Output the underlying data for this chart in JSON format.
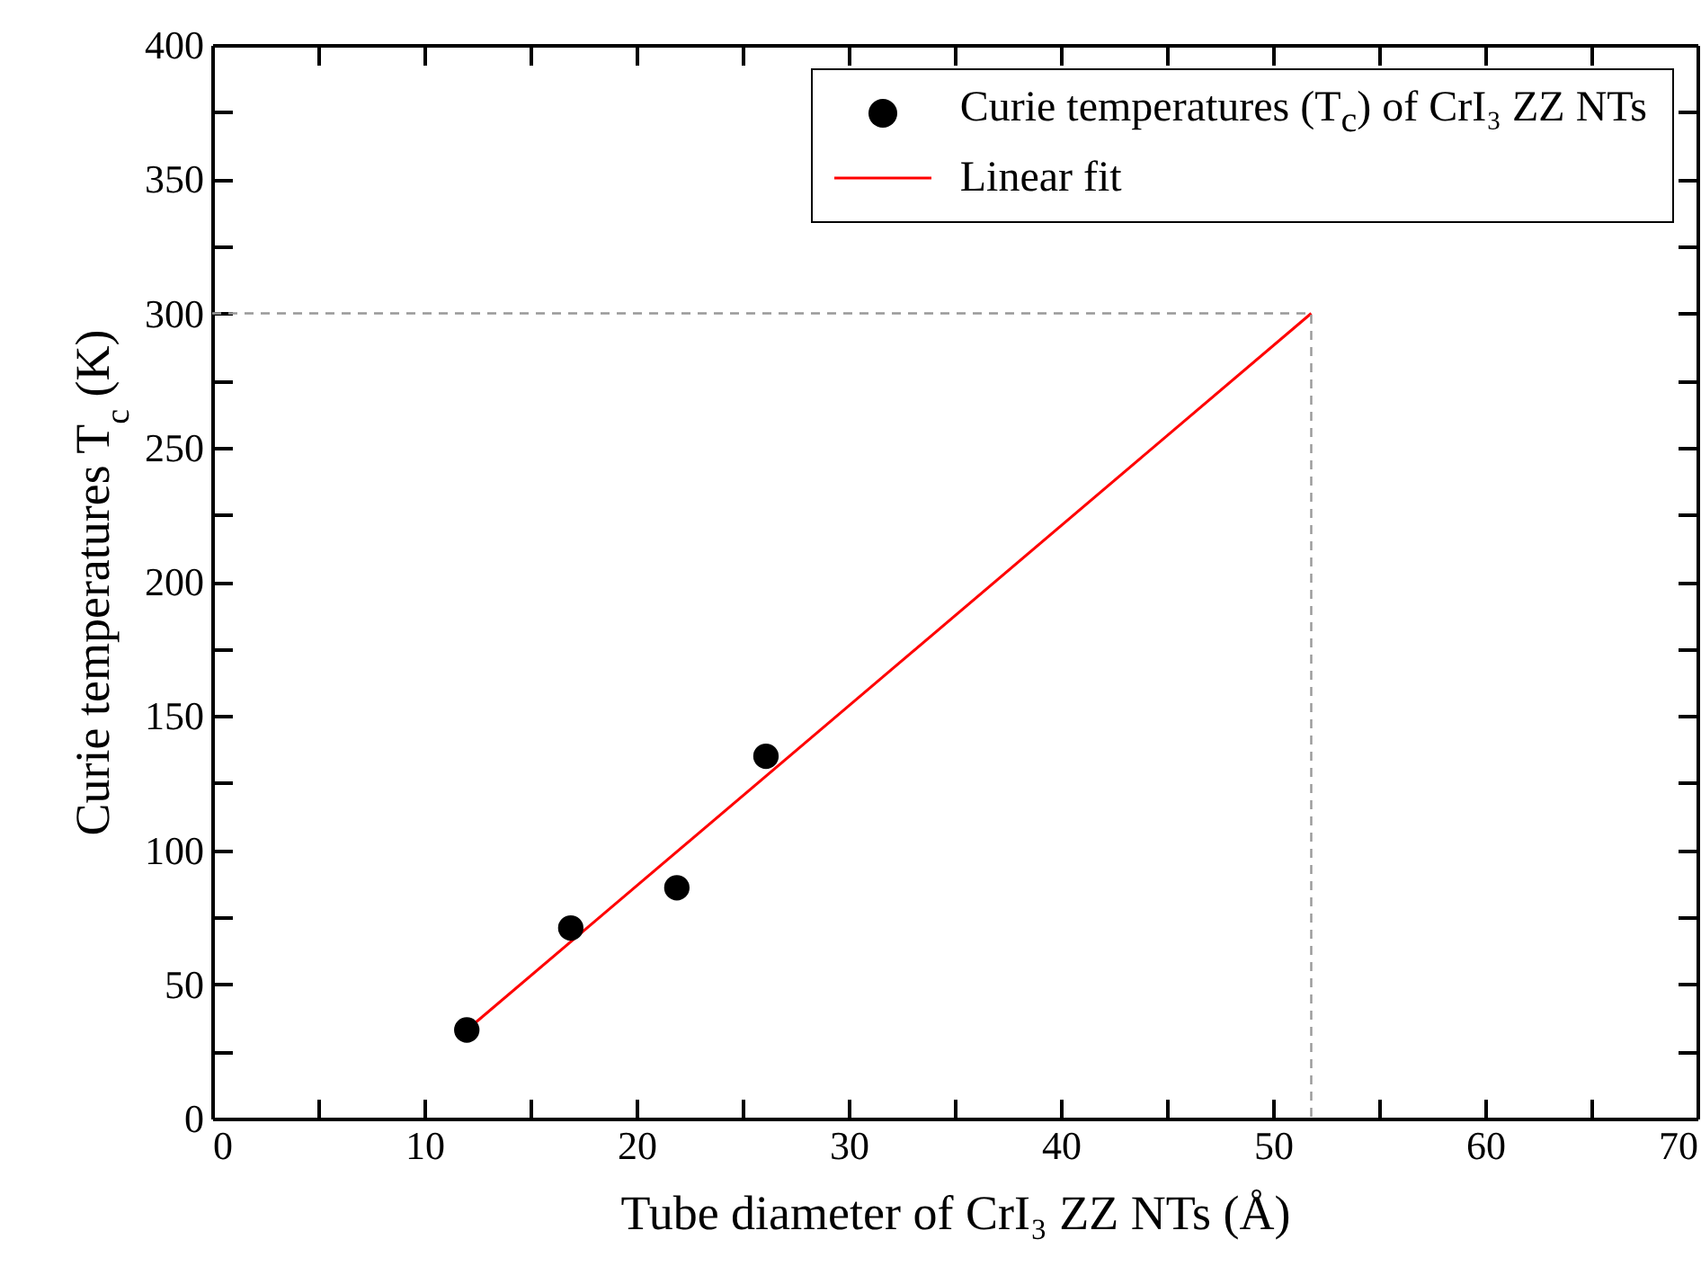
{
  "chart_data": {
    "type": "scatter",
    "xlabel": "Tube diameter of CrI₃ ZZ NTs (Å)",
    "ylabel": "Curie temperatures T$_{c}$ (K)",
    "xlim": [
      0,
      70
    ],
    "ylim": [
      0,
      400
    ],
    "xticks": [
      0,
      {
        "value": 5,
        "label": null
      },
      10,
      {
        "value": 15,
        "label": null
      },
      20,
      {
        "value": 25,
        "label": null
      },
      30,
      {
        "value": 35,
        "label": null
      },
      40,
      {
        "value": 45,
        "label": null
      },
      50,
      {
        "value": 55,
        "label": null
      },
      60,
      {
        "value": 65,
        "label": null
      },
      70
    ],
    "yticks": [
      0,
      {
        "value": 25,
        "label": null
      },
      50,
      {
        "value": 75,
        "label": null
      },
      100,
      {
        "value": 125,
        "label": null
      },
      150,
      {
        "value": 175,
        "label": null
      },
      200,
      {
        "value": 225,
        "label": null
      },
      250,
      {
        "value": 275,
        "label": null
      },
      300,
      {
        "value": 325,
        "label": null
      },
      350,
      {
        "value": 375,
        "label": null
      },
      400
    ],
    "legend": "top right",
    "series": [
      {
        "name": "Curie temperatures (T$_{c}$)  of CrI₃ ZZ NTs",
        "marker": "circle",
        "color": "#000000",
        "x": [
          12.0,
          16.9,
          21.9,
          26.1
        ],
        "values": [
          33,
          71,
          86,
          135
        ]
      },
      {
        "name": "Linear fit",
        "type": "line",
        "color": "#ff0000",
        "line_style": "solid",
        "x": [
          12.0,
          51.8
        ],
        "values": [
          33,
          300
        ]
      },
      {
        "type": "line",
        "color": "#999999",
        "line_style": "dashed",
        "x": [
          0,
          51.8,
          51.8
        ],
        "values": [
          300,
          300,
          0
        ]
      }
    ]
  }
}
